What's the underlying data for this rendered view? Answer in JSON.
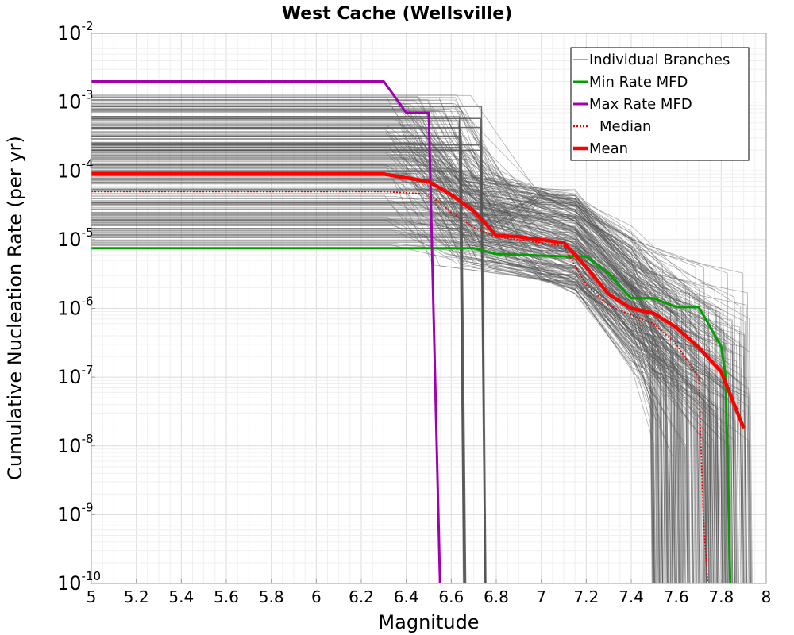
{
  "chart_data": {
    "type": "line",
    "title": "West Cache (Wellsville)",
    "xlabel": "Magnitude",
    "ylabel": "Cumulative Nucleation Rate (per yr)",
    "xlim": [
      5,
      8
    ],
    "ylim": [
      1e-10,
      0.01
    ],
    "yscale": "log",
    "grid": true,
    "legend_position": "top-right",
    "xticks": [
      "5",
      "5.2",
      "5.4",
      "5.6",
      "5.8",
      "6",
      "6.2",
      "6.4",
      "6.6",
      "6.8",
      "7",
      "7.2",
      "7.4",
      "7.6",
      "7.8",
      "8"
    ],
    "yticks": [
      {
        "base": "10",
        "exp": "-2",
        "value": 0.01
      },
      {
        "base": "10",
        "exp": "-3",
        "value": 0.001
      },
      {
        "base": "10",
        "exp": "-4",
        "value": 0.0001
      },
      {
        "base": "10",
        "exp": "-5",
        "value": 1e-05
      },
      {
        "base": "10",
        "exp": "-6",
        "value": 1e-06
      },
      {
        "base": "10",
        "exp": "-7",
        "value": 1e-07
      },
      {
        "base": "10",
        "exp": "-8",
        "value": 1e-08
      },
      {
        "base": "10",
        "exp": "-9",
        "value": 1e-09
      },
      {
        "base": "10",
        "exp": "-10",
        "value": 1e-10
      }
    ],
    "series": [
      {
        "name": "Min Rate MFD",
        "color": "#00a000",
        "style": "solid",
        "x": [
          5,
          6.5,
          6.7,
          6.8,
          7.1,
          7.2,
          7.3,
          7.4,
          7.5,
          7.6,
          7.7,
          7.8,
          7.82,
          7.84
        ],
        "y": [
          7.5e-06,
          7.5e-06,
          7.5e-06,
          6.2e-06,
          5.7e-06,
          5.7e-06,
          3.2e-06,
          1.4e-06,
          1.4e-06,
          1.05e-06,
          1.05e-06,
          2.8e-07,
          1e-07,
          1e-10
        ]
      },
      {
        "name": "Max Rate MFD",
        "color": "#a000b0",
        "style": "solid",
        "x": [
          5,
          6.3,
          6.4,
          6.5,
          6.55
        ],
        "y": [
          0.002,
          0.002,
          0.0007,
          0.0007,
          1e-10
        ]
      },
      {
        "name": "Median",
        "color": "#ee0000",
        "style": "dotted",
        "x": [
          5,
          6.3,
          6.5,
          6.6,
          6.7,
          6.8,
          7.0,
          7.1,
          7.2,
          7.3,
          7.4,
          7.5,
          7.6,
          7.7,
          7.72,
          7.74
        ],
        "y": [
          5e-05,
          5e-05,
          4.6e-05,
          2.5e-05,
          1.5e-05,
          1.1e-05,
          9e-06,
          8e-06,
          2.2e-06,
          1.1e-06,
          8e-07,
          6e-07,
          3e-07,
          1e-07,
          1e-09,
          1e-10
        ]
      },
      {
        "name": "Mean",
        "color": "#ff0000",
        "style": "thick",
        "x": [
          5,
          6.3,
          6.5,
          6.6,
          6.7,
          6.8,
          6.9,
          7.0,
          7.1,
          7.2,
          7.3,
          7.4,
          7.5,
          7.6,
          7.7,
          7.8,
          7.9
        ],
        "y": [
          9e-05,
          9e-05,
          7e-05,
          4.5e-05,
          2.6e-05,
          1.15e-05,
          1.1e-05,
          1e-05,
          9e-06,
          4e-06,
          1.6e-06,
          1e-06,
          8.5e-07,
          5.3e-07,
          2.7e-07,
          1.2e-07,
          1.8e-08
        ]
      },
      {
        "name": "Individual Branches",
        "color": "#555555",
        "style": "thin",
        "note": "hundreds of logic-tree branches, rates from ~1e-5 to ~1.3e-3 at M5, dropping to ~2e-5 near M6.8 and truncating between M7.5 and M7.95"
      }
    ]
  },
  "legend": {
    "items": [
      {
        "label": "Individual Branches",
        "color": "#555555",
        "style": "thin"
      },
      {
        "label": "Min Rate MFD",
        "color": "#00a000",
        "style": "solid"
      },
      {
        "label": "Max Rate MFD",
        "color": "#a000b0",
        "style": "solid"
      },
      {
        "label": "Median",
        "color": "#ee0000",
        "style": "dotted"
      },
      {
        "label": "Mean",
        "color": "#ff0000",
        "style": "thick"
      }
    ]
  }
}
